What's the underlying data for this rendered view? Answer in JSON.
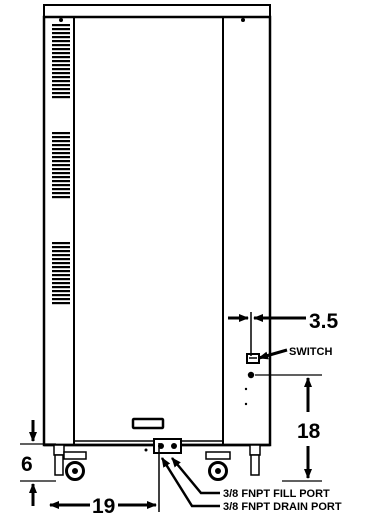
{
  "diagram": {
    "dimensions": {
      "side_offset": "3.5",
      "port_height": "18",
      "caster_height": "6",
      "width_offset": "19"
    },
    "callouts": {
      "switch": "SWITCH",
      "fill_port": "3/8 FNPT FILL PORT",
      "drain_port": "3/8 FNPT DRAIN PORT"
    },
    "colors": {
      "line": "#000000",
      "background": "#ffffff"
    }
  }
}
